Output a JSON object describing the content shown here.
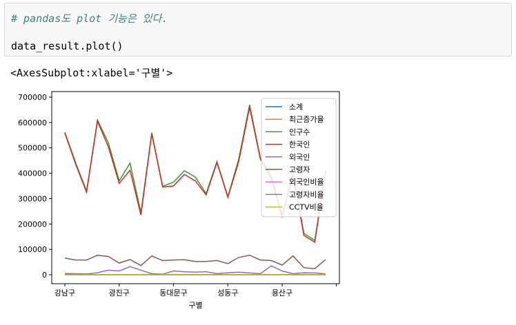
{
  "cell": {
    "comment": "# pandas도 plot 기능은 있다.",
    "code": "data_result.plot()"
  },
  "output": {
    "repr": "<AxesSubplot:xlabel='구별'>"
  },
  "chart_data": {
    "type": "line",
    "xlabel": "구별",
    "ylabel": "",
    "ylim": [
      -10000,
      700000
    ],
    "yticks": [
      0,
      100000,
      200000,
      300000,
      400000,
      500000,
      600000,
      700000
    ],
    "ytick_labels": [
      "0",
      "100000",
      "200000",
      "300000",
      "400000",
      "500000",
      "600000",
      "700000"
    ],
    "x": [
      0,
      1,
      2,
      3,
      4,
      5,
      6,
      7,
      8,
      9,
      10,
      11,
      12,
      13,
      14,
      15,
      16,
      17,
      18,
      19,
      20,
      21,
      22,
      23,
      24
    ],
    "xticks": [
      0,
      5,
      10,
      15,
      20
    ],
    "xtick_labels": [
      "강남구",
      "광진구",
      "동대문구",
      "성동구",
      "용산구"
    ],
    "legend_position": "upper right",
    "series": [
      {
        "name": "소계",
        "color": "#1f77b4",
        "values": [
          0,
          0,
          0,
          0,
          0,
          0,
          0,
          0,
          0,
          0,
          0,
          0,
          0,
          0,
          0,
          0,
          0,
          0,
          0,
          0,
          0,
          0,
          0,
          0,
          0
        ]
      },
      {
        "name": "최근증가율",
        "color": "#ff7f0e",
        "values": [
          0,
          0,
          0,
          0,
          0,
          0,
          0,
          0,
          0,
          0,
          0,
          0,
          0,
          0,
          0,
          0,
          0,
          0,
          0,
          0,
          0,
          0,
          0,
          0,
          0
        ]
      },
      {
        "name": "인구수",
        "color": "#2ca02c",
        "values": [
          562000,
          440000,
          330000,
          610000,
          520000,
          370000,
          440000,
          245000,
          560000,
          348000,
          365000,
          410000,
          385000,
          320000,
          446000,
          308000,
          455000,
          670000,
          460000,
          390000,
          230000,
          400000,
          163000,
          135000,
          410000
        ]
      },
      {
        "name": "한국인",
        "color": "#d62728",
        "values": [
          558000,
          435000,
          325000,
          605000,
          505000,
          360000,
          412000,
          235000,
          555000,
          345000,
          350000,
          395000,
          370000,
          315000,
          442000,
          305000,
          445000,
          660000,
          455000,
          380000,
          230000,
          395000,
          155000,
          128000,
          405000
        ]
      },
      {
        "name": "외국인",
        "color": "#9467bd",
        "values": [
          5000,
          4000,
          3000,
          8000,
          18000,
          15000,
          32000,
          18000,
          4000,
          2000,
          15000,
          12000,
          10000,
          12000,
          4000,
          8000,
          10000,
          7000,
          4000,
          35000,
          15000,
          4000,
          8000,
          7000,
          3000
        ]
      },
      {
        "name": "고령자",
        "color": "#8c564b",
        "values": [
          66000,
          58000,
          58000,
          77000,
          72000,
          46000,
          60000,
          36000,
          74000,
          56000,
          58000,
          59000,
          52000,
          52000,
          56000,
          44000,
          68000,
          77000,
          58000,
          56000,
          38000,
          74000,
          28000,
          24000,
          60000
        ]
      },
      {
        "name": "외국인비율",
        "color": "#e377c2",
        "values": [
          0,
          0,
          0,
          0,
          0,
          0,
          0,
          0,
          0,
          0,
          0,
          0,
          0,
          0,
          0,
          0,
          0,
          0,
          0,
          0,
          0,
          0,
          0,
          0,
          0
        ]
      },
      {
        "name": "고령자비율",
        "color": "#7f7f7f",
        "values": [
          0,
          0,
          0,
          0,
          0,
          0,
          0,
          0,
          0,
          0,
          0,
          0,
          0,
          0,
          0,
          0,
          0,
          0,
          0,
          0,
          0,
          0,
          0,
          0,
          0
        ]
      },
      {
        "name": "CCTV비율",
        "color": "#bcbd22",
        "values": [
          0,
          0,
          0,
          0,
          0,
          0,
          0,
          0,
          0,
          0,
          0,
          0,
          0,
          0,
          0,
          0,
          0,
          0,
          0,
          0,
          0,
          0,
          0,
          0,
          0
        ]
      }
    ]
  }
}
